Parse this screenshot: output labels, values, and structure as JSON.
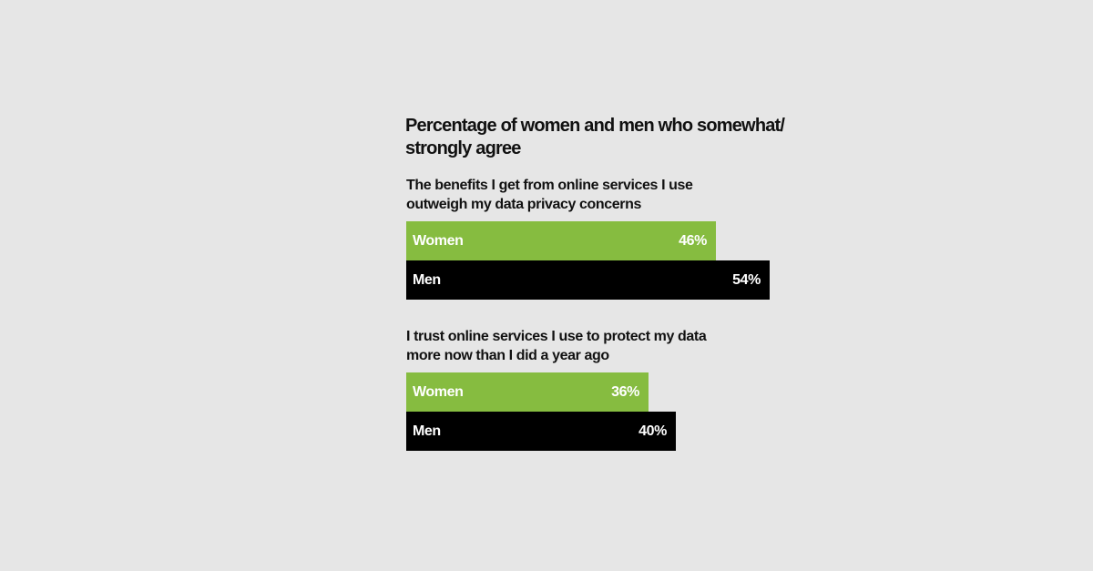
{
  "colors": {
    "background": "#e6e6e6",
    "women": "#86bc40",
    "men": "#000000",
    "label_text": "#ffffff"
  },
  "chart_data": {
    "type": "bar",
    "orientation": "horizontal",
    "title": "Percentage of women and men who somewhat/ strongly agree",
    "xlim": [
      0,
      100
    ],
    "grid": false,
    "groups": [
      {
        "label": "The benefits I get from online services I use outweigh my data privacy concerns",
        "bars": [
          {
            "name": "Women",
            "value": 46,
            "value_label": "46%"
          },
          {
            "name": "Men",
            "value": 54,
            "value_label": "54%"
          }
        ]
      },
      {
        "label": "I trust online services I use to protect my data more now than I did a year ago",
        "bars": [
          {
            "name": "Women",
            "value": 36,
            "value_label": "36%"
          },
          {
            "name": "Men",
            "value": 40,
            "value_label": "40%"
          }
        ]
      }
    ]
  }
}
